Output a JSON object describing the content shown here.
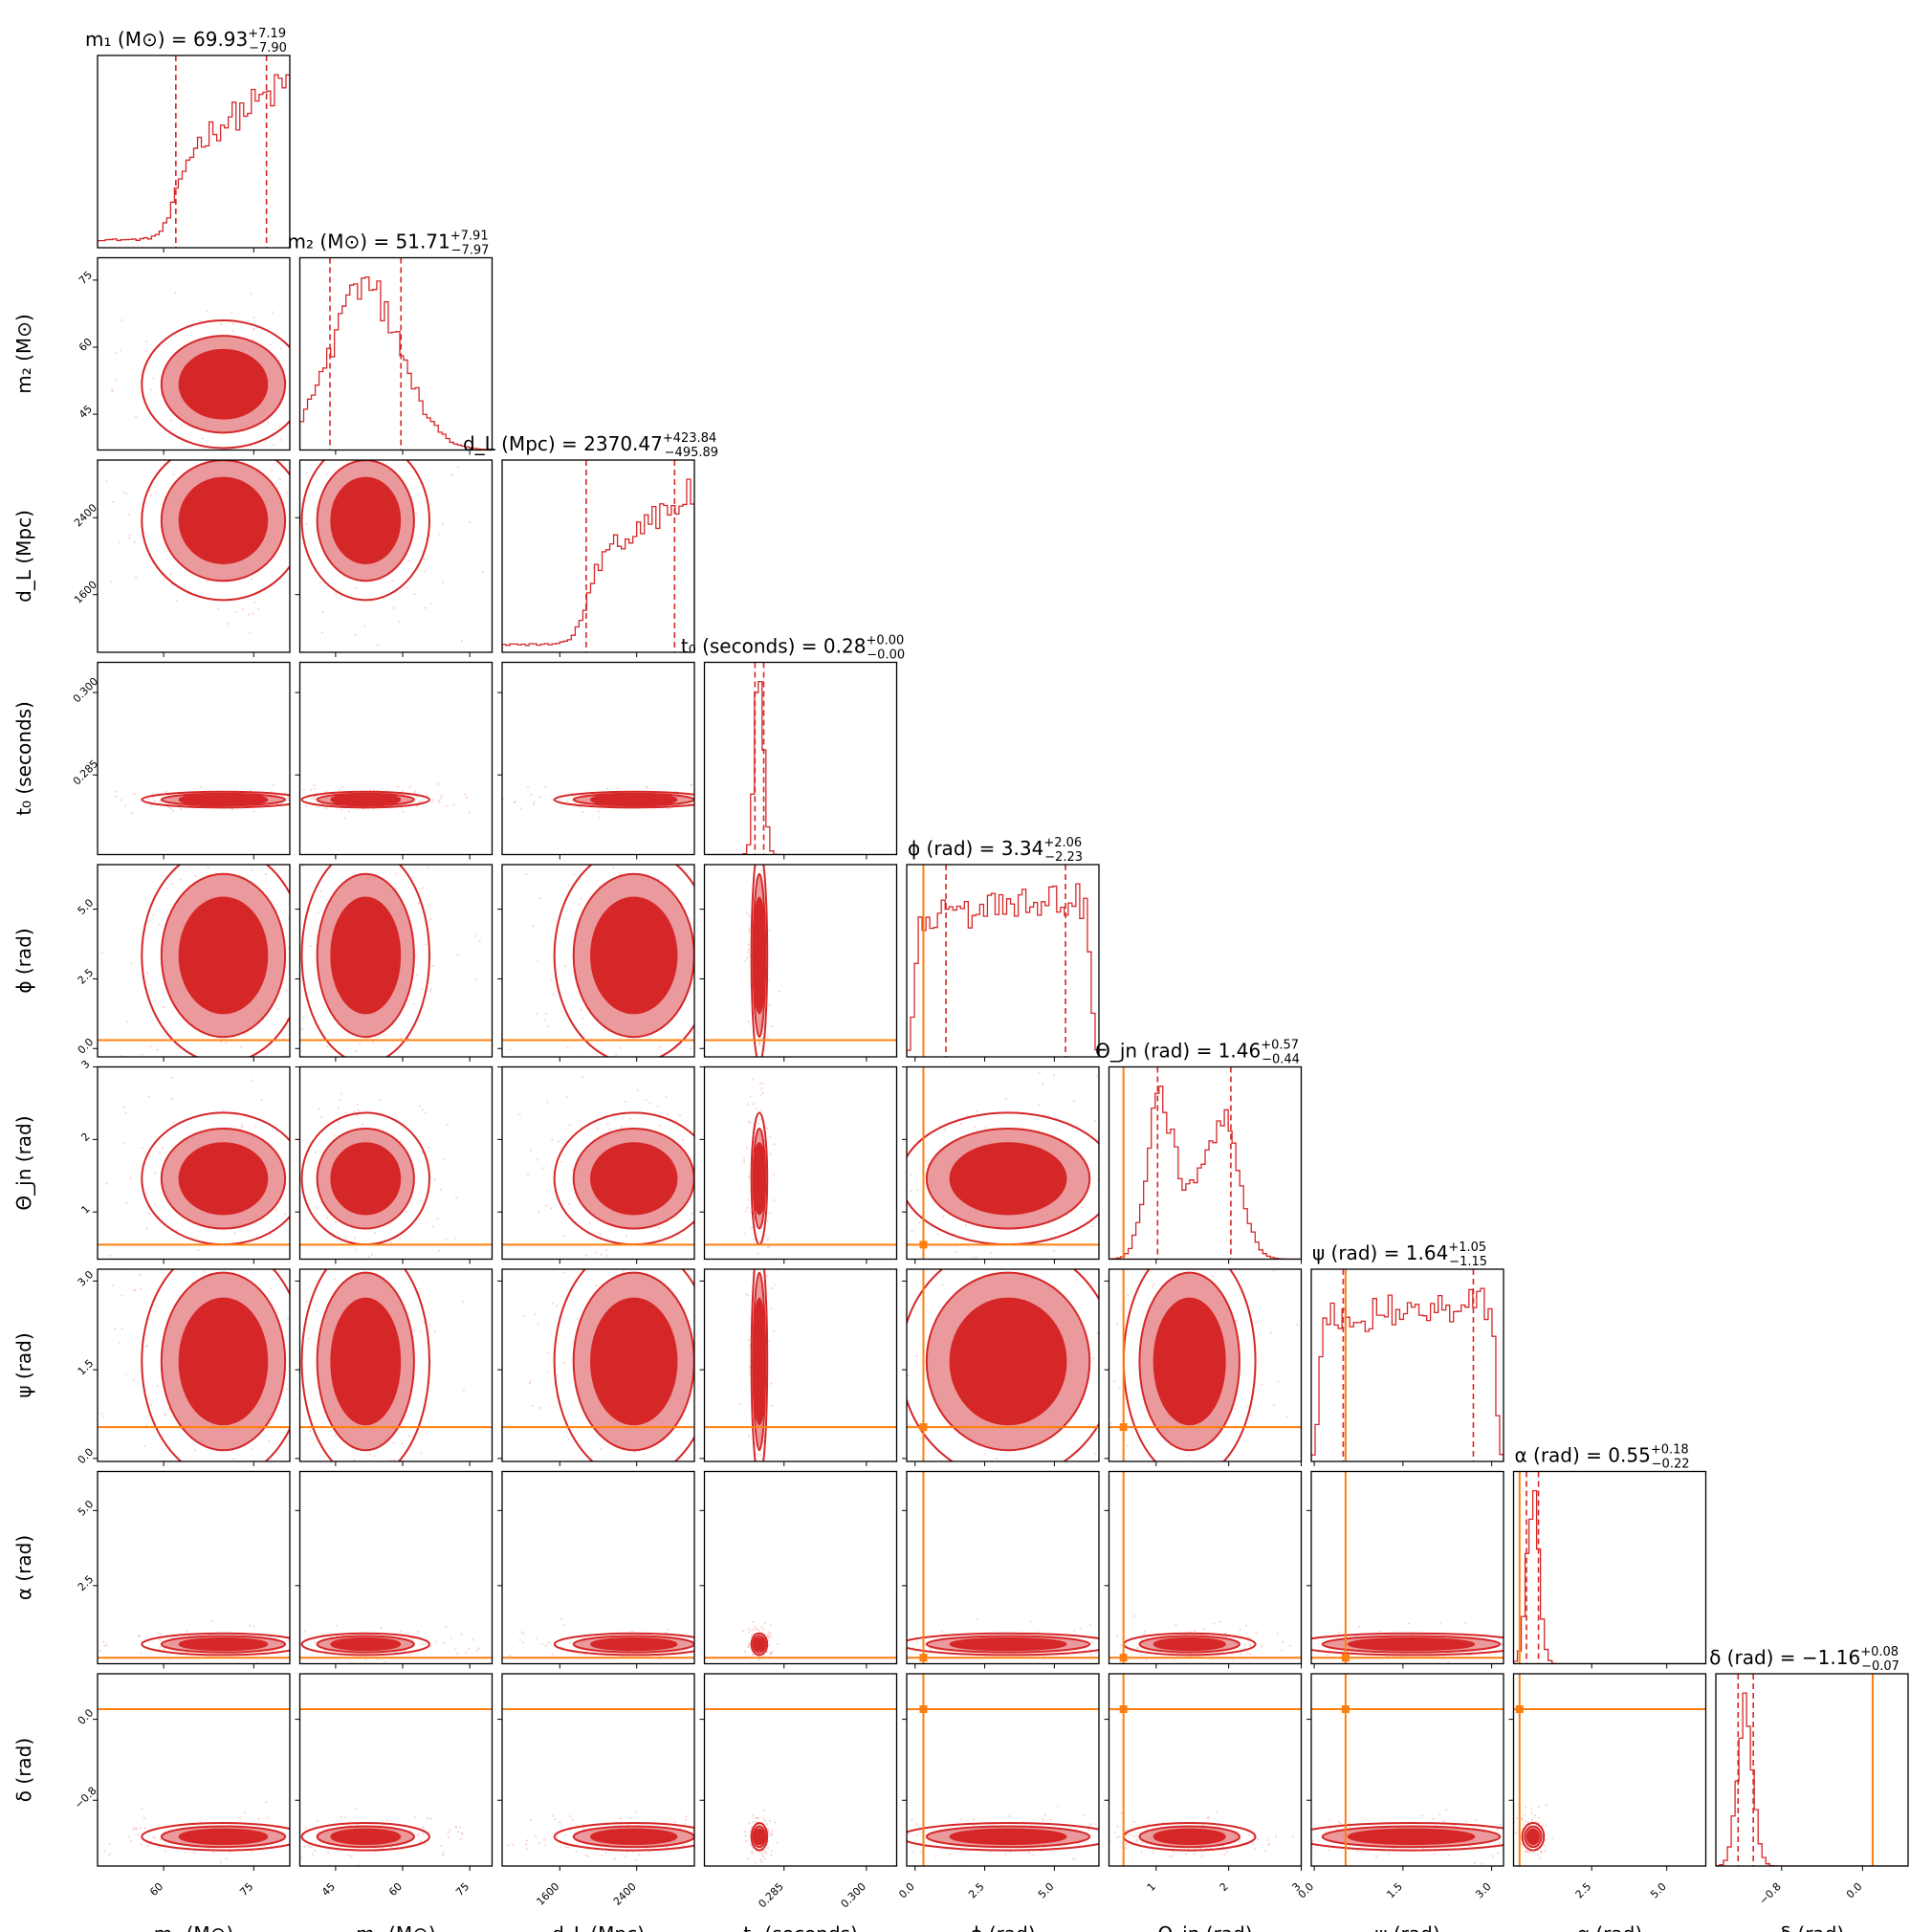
{
  "chart_data": {
    "type": "corner",
    "colors": {
      "posterior": "#d62728",
      "contour_fill_dark": "#d62728",
      "contour_fill_light": "#ea9a9c",
      "truth": "#ff7f0e"
    },
    "parameters": [
      {
        "key": "m1",
        "axis_label": "m₁ (M⊙)",
        "title_main": "m₁ (M⊙) = 69.93",
        "title_plus": "+7.19",
        "title_minus": "−7.90",
        "median": 69.93,
        "range": [
          49,
          81
        ],
        "ticks": [
          60,
          75
        ],
        "tick_labels": [
          "60",
          "75"
        ],
        "quantiles": [
          62.03,
          77.12
        ],
        "truth": null,
        "shape": "rising_edge"
      },
      {
        "key": "m2",
        "axis_label": "m₂ (M⊙)",
        "title_main": "m₂ (M⊙) = 51.71",
        "title_plus": "+7.91",
        "title_minus": "−7.97",
        "median": 51.71,
        "range": [
          37,
          80
        ],
        "ticks": [
          45,
          60,
          75
        ],
        "tick_labels": [
          "45",
          "60",
          "75"
        ],
        "quantiles": [
          43.74,
          59.62
        ],
        "truth": null,
        "shape": "gauss"
      },
      {
        "key": "dL",
        "axis_label": "d_L (Mpc)",
        "title_main": "d_L (Mpc) = 2370.47",
        "title_plus": "+423.84",
        "title_minus": "−495.89",
        "median": 2370.47,
        "range": [
          1000,
          3000
        ],
        "ticks": [
          1600,
          2400
        ],
        "tick_labels": [
          "1600",
          "2400"
        ],
        "quantiles": [
          1874.58,
          2794.31
        ],
        "truth": null,
        "shape": "rising_edge"
      },
      {
        "key": "t0",
        "axis_label": "t₀ (seconds)",
        "title_main": "t₀ (seconds) = 0.28",
        "title_plus": "+0.00",
        "title_minus": "−0.00",
        "median": 0.2805,
        "range": [
          0.2705,
          0.3055
        ],
        "ticks": [
          0.285,
          0.3
        ],
        "tick_labels": [
          "0.285",
          "0.300"
        ],
        "quantiles": [
          0.2797,
          0.2813
        ],
        "truth": null,
        "shape": "narrow"
      },
      {
        "key": "phi",
        "axis_label": "ϕ (rad)",
        "title_main": "ϕ (rad) = 3.34",
        "title_plus": "+2.06",
        "title_minus": "−2.23",
        "median": 3.34,
        "range": [
          -0.3,
          6.6
        ],
        "ticks": [
          0,
          2.5,
          5
        ],
        "tick_labels": [
          "0.0",
          "2.5",
          "5.0"
        ],
        "quantiles": [
          1.11,
          5.4
        ],
        "truth": 0.3,
        "shape": "flat"
      },
      {
        "key": "theta_jn",
        "axis_label": "Θ_jn (rad)",
        "title_main": "Θ_jn (rad) = 1.46",
        "title_plus": "+0.57",
        "title_minus": "−0.44",
        "median": 1.46,
        "range": [
          0.35,
          3.0
        ],
        "ticks": [
          1,
          2,
          3
        ],
        "tick_labels": [
          "1",
          "2",
          "3"
        ],
        "quantiles": [
          1.02,
          2.03
        ],
        "truth": 0.55,
        "shape": "bimodal"
      },
      {
        "key": "psi",
        "axis_label": "ψ (rad)",
        "title_main": "ψ (rad) = 1.64",
        "title_plus": "+1.05",
        "title_minus": "−1.15",
        "median": 1.64,
        "range": [
          -0.05,
          3.2
        ],
        "ticks": [
          0,
          1.5,
          3
        ],
        "tick_labels": [
          "0.0",
          "1.5",
          "3.0"
        ],
        "quantiles": [
          0.49,
          2.69
        ],
        "truth": 0.53,
        "shape": "flat"
      },
      {
        "key": "alpha",
        "axis_label": "α (rad)",
        "title_main": "α (rad) = 0.55",
        "title_plus": "+0.18",
        "title_minus": "−0.22",
        "median": 0.55,
        "range": [
          -0.1,
          6.3
        ],
        "ticks": [
          2.5,
          5
        ],
        "tick_labels": [
          "2.5",
          "5.0"
        ],
        "quantiles": [
          0.33,
          0.73
        ],
        "truth": 0.1,
        "shape": "narrow"
      },
      {
        "key": "delta",
        "axis_label": "δ (rad)",
        "title_main": "δ (rad) = −1.16",
        "title_plus": "+0.08",
        "title_minus": "−0.07",
        "median": -1.16,
        "range": [
          -1.45,
          0.45
        ],
        "ticks": [
          -0.8,
          0
        ],
        "tick_labels": [
          "−0.8",
          "0.0"
        ],
        "quantiles": [
          -1.23,
          -1.08
        ],
        "truth": 0.1,
        "shape": "narrow"
      }
    ],
    "contour_levels": 3,
    "grid": false,
    "legend": "none"
  }
}
